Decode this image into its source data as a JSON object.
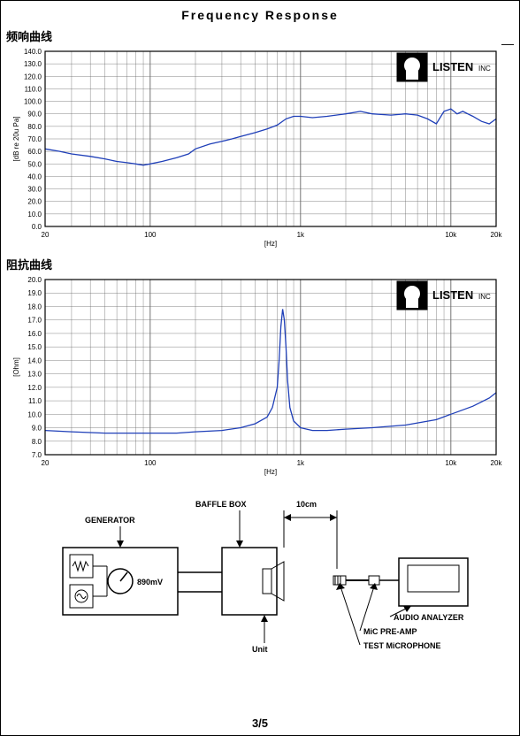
{
  "page_title": "Frequency    Response",
  "page_number": "3/5",
  "dash": "—",
  "chart1": {
    "title": "频响曲线",
    "type": "line",
    "xlabel": "[Hz]",
    "ylabel": "[dB re 20u Pa]",
    "xscale": "log",
    "xlim": [
      20,
      20000
    ],
    "ylim": [
      0,
      140
    ],
    "ytick_step": 10,
    "x_ticks": [
      20,
      100,
      1000,
      10000,
      20000
    ],
    "x_tick_labels": [
      "20",
      "100",
      "1k",
      "10k",
      "20k"
    ],
    "line_color": "#1f3fb8",
    "line_width": 1.3,
    "axis_color": "#000000",
    "grid_color": "#666666",
    "background_color": "#ffffff",
    "label_fontsize": 8,
    "logo_text": "LISTEN",
    "logo_sub": "INC",
    "data_x": [
      20,
      25,
      30,
      40,
      50,
      60,
      70,
      80,
      90,
      100,
      120,
      150,
      180,
      200,
      250,
      300,
      350,
      400,
      500,
      600,
      700,
      800,
      900,
      1000,
      1200,
      1500,
      2000,
      2500,
      3000,
      4000,
      5000,
      6000,
      7000,
      8000,
      9000,
      10000,
      11000,
      12000,
      14000,
      16000,
      18000,
      20000
    ],
    "data_y": [
      62,
      60,
      58,
      56,
      54,
      52,
      51,
      50,
      49,
      50,
      52,
      55,
      58,
      62,
      66,
      68,
      70,
      72,
      75,
      78,
      81,
      86,
      88,
      88,
      87,
      88,
      90,
      92,
      90,
      89,
      90,
      89,
      86,
      82,
      92,
      94,
      90,
      92,
      88,
      84,
      82,
      86
    ]
  },
  "chart2": {
    "title": "阻抗曲线",
    "type": "line",
    "xlabel": "[Hz]",
    "ylabel": "[Ohm]",
    "xscale": "log",
    "xlim": [
      20,
      20000
    ],
    "ylim": [
      7,
      20
    ],
    "ytick_step": 1,
    "x_ticks": [
      20,
      100,
      1000,
      10000,
      20000
    ],
    "x_tick_labels": [
      "20",
      "100",
      "1k",
      "10k",
      "20k"
    ],
    "line_color": "#1f3fb8",
    "line_width": 1.3,
    "axis_color": "#000000",
    "grid_color": "#666666",
    "background_color": "#ffffff",
    "label_fontsize": 8,
    "logo_text": "LISTEN",
    "logo_sub": "INC",
    "data_x": [
      20,
      30,
      50,
      80,
      100,
      150,
      200,
      300,
      400,
      500,
      600,
      650,
      700,
      720,
      740,
      760,
      780,
      800,
      820,
      850,
      900,
      1000,
      1200,
      1500,
      2000,
      3000,
      5000,
      8000,
      10000,
      14000,
      18000,
      20000
    ],
    "data_y": [
      8.8,
      8.7,
      8.6,
      8.6,
      8.6,
      8.6,
      8.7,
      8.8,
      9.0,
      9.3,
      9.8,
      10.5,
      12.0,
      14.0,
      16.5,
      17.8,
      17.0,
      15.0,
      12.5,
      10.5,
      9.5,
      9.0,
      8.8,
      8.8,
      8.9,
      9.0,
      9.2,
      9.6,
      10.0,
      10.6,
      11.2,
      11.6
    ]
  },
  "diagram": {
    "generator_label": "GENERATOR",
    "baffle_label": "BAFFLE BOX",
    "distance_label": "10cm",
    "unit_label": "Unit",
    "voltage_label": "890mV",
    "analyzer_label": "AUDIO ANALYZER",
    "preamp_label": "MiC PRE-AMP",
    "mic_label": "TEST MiCROPHONE",
    "label_fontsize": 9,
    "line_color": "#000000",
    "background_color": "#ffffff"
  }
}
